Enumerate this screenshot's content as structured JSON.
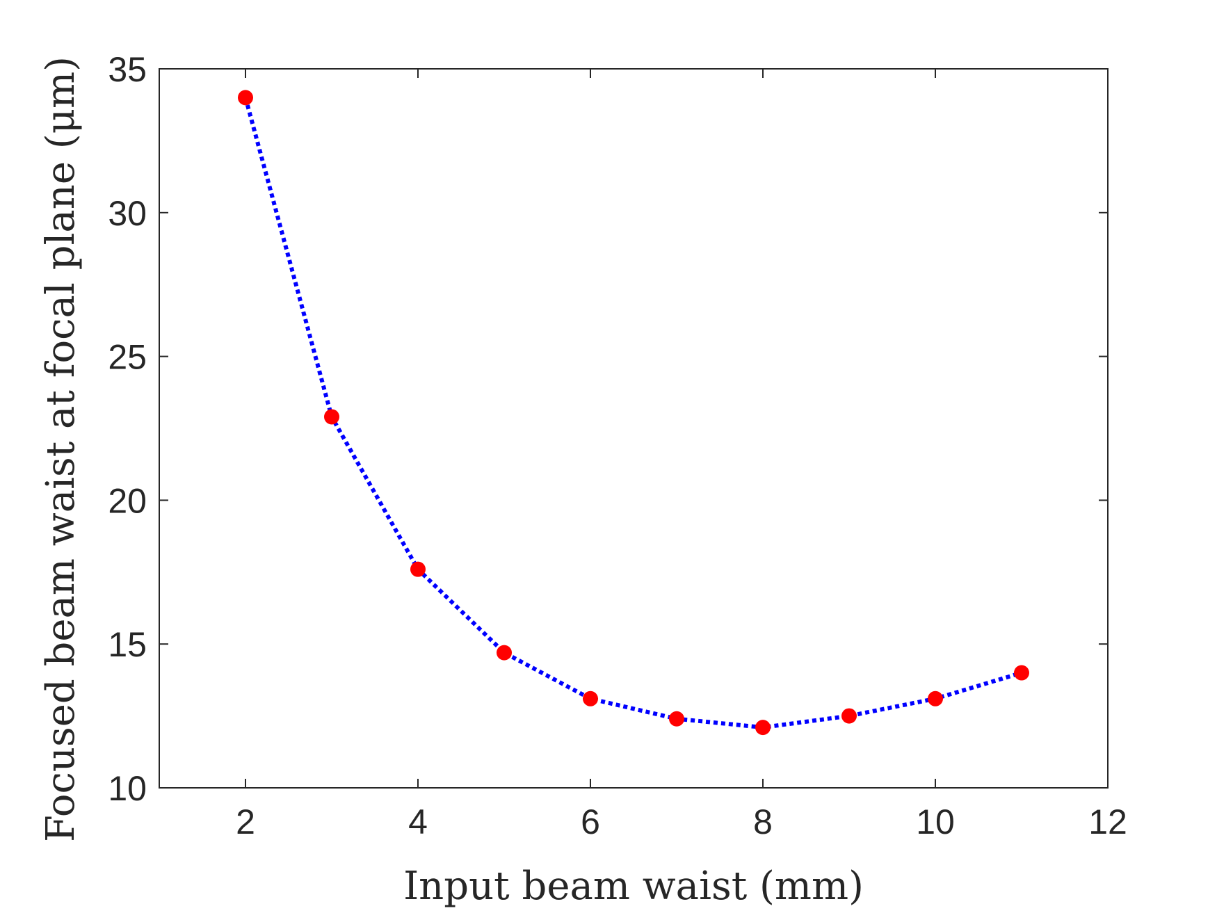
{
  "chart_data": {
    "type": "line",
    "title": "",
    "xlabel": "Input beam waist (mm)",
    "ylabel": "Focused beam waist at focal plane (μm)",
    "xlim": [
      1,
      12
    ],
    "ylim": [
      10,
      35
    ],
    "xticks": [
      2,
      4,
      6,
      8,
      10,
      12
    ],
    "yticks": [
      10,
      15,
      20,
      25,
      30,
      35
    ],
    "grid": false,
    "legend": "none",
    "series": [
      {
        "x": [
          2,
          3,
          4,
          5,
          6,
          7,
          8,
          9,
          10,
          11
        ],
        "y": [
          34.0,
          22.9,
          17.6,
          14.7,
          13.1,
          12.4,
          12.1,
          12.5,
          13.1,
          14.0
        ],
        "line_color": "#0000ff",
        "line_style": "dotted",
        "marker_color": "#ff0000",
        "marker": "circle"
      }
    ],
    "colors": {
      "axes": "#262626",
      "line": "#0000ff",
      "marker": "#ff0000"
    }
  }
}
